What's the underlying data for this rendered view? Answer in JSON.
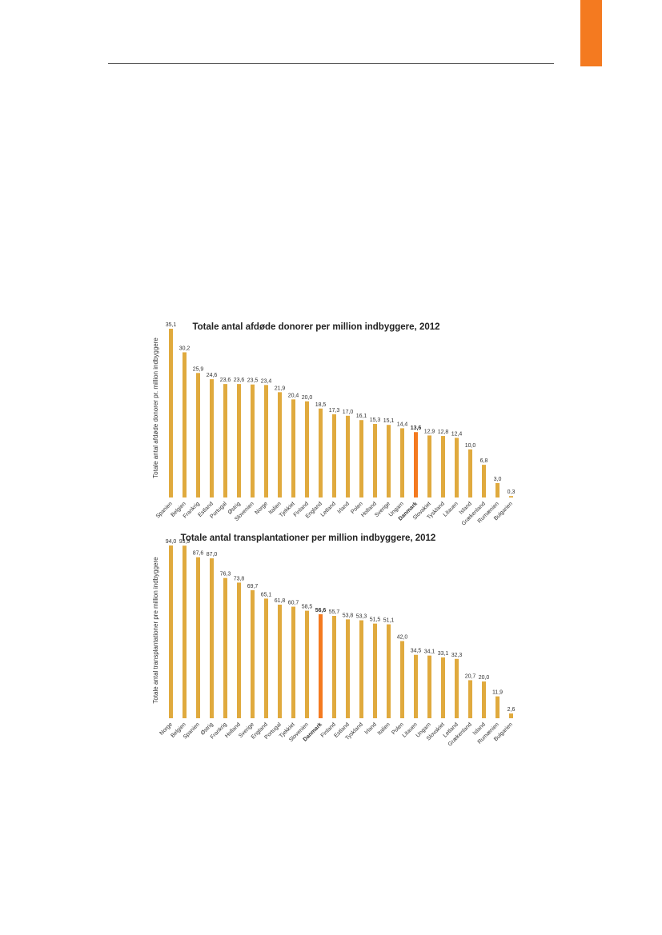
{
  "colors": {
    "accent_tab": "#f47a20",
    "bar": "#e0aa3e",
    "highlight_bar": "#f47a20"
  },
  "chart_data": [
    {
      "type": "bar",
      "title": "Totale antal afdøde donorer per million indbyggere, 2012",
      "ylabel": "Totale antal afdøde donorer pr. million indbyggere",
      "highlight": "Danmark",
      "ylim": [
        0,
        35.1
      ],
      "grid": false,
      "categories": [
        "Spanien",
        "Belgien",
        "Frankrig",
        "Estland",
        "Portugal",
        "Østrig",
        "Slovenien",
        "Norge",
        "Italien",
        "Tjekkiet",
        "Finland",
        "England",
        "Letland",
        "Irland",
        "Polen",
        "Holland",
        "Sverige",
        "Ungarn",
        "Danmark",
        "Slovakiet",
        "Tyskland",
        "Litauen",
        "Island",
        "Grækenland",
        "Rumænien",
        "Bulgarien"
      ],
      "values": [
        35.1,
        30.2,
        25.9,
        24.6,
        23.6,
        23.6,
        23.5,
        23.4,
        21.9,
        20.4,
        20.0,
        18.5,
        17.3,
        17.0,
        16.1,
        15.3,
        15.1,
        14.4,
        13.6,
        12.9,
        12.8,
        12.4,
        10.0,
        6.8,
        3.0,
        0.3
      ],
      "value_labels": [
        "35,1",
        "30,2",
        "25,9",
        "24,6",
        "23,6",
        "23,6",
        "23,5",
        "23,4",
        "21,9",
        "20,4",
        "20,0",
        "18,5",
        "17,3",
        "17,0",
        "16,1",
        "15,3",
        "15,1",
        "14,4",
        "13,6",
        "12,9",
        "12,8",
        "12,4",
        "10,0",
        "6,8",
        "3,0",
        "0,3"
      ]
    },
    {
      "type": "bar",
      "title": "Totale antal transplantationer per million indbyggere, 2012",
      "ylabel": "Totale antal transplantationer pre million indbyggere",
      "highlight": "Danmark",
      "ylim": [
        0,
        94.0
      ],
      "grid": false,
      "categories": [
        "Norge",
        "Belgien",
        "Spanien",
        "Østrig",
        "Frankrig",
        "Holland",
        "Sverige",
        "England",
        "Portugal",
        "Tjekkiet",
        "Slovenien",
        "Danmark",
        "Finland",
        "Estland",
        "Tyskland",
        "Irland",
        "Italien",
        "Polen",
        "Litauen",
        "Ungarn",
        "Slovakiet",
        "Letland",
        "Grækenland",
        "Island",
        "Rumænien",
        "Bulgarien"
      ],
      "values": [
        94.0,
        93.9,
        87.6,
        87.0,
        76.3,
        73.8,
        69.7,
        65.1,
        61.8,
        60.7,
        58.5,
        56.6,
        55.7,
        53.8,
        53.3,
        51.5,
        51.1,
        42.0,
        34.5,
        34.1,
        33.1,
        32.3,
        20.7,
        20.0,
        11.9,
        2.6
      ],
      "value_labels": [
        "94,0",
        "93,9",
        "87,6",
        "87,0",
        "76,3",
        "73,8",
        "69,7",
        "65,1",
        "61,8",
        "60,7",
        "58,5",
        "56,6",
        "55,7",
        "53,8",
        "53,3",
        "51,5",
        "51,1",
        "42,0",
        "34,5",
        "34,1",
        "33,1",
        "32,3",
        "20,7",
        "20,0",
        "11,9",
        "2,6"
      ]
    }
  ]
}
